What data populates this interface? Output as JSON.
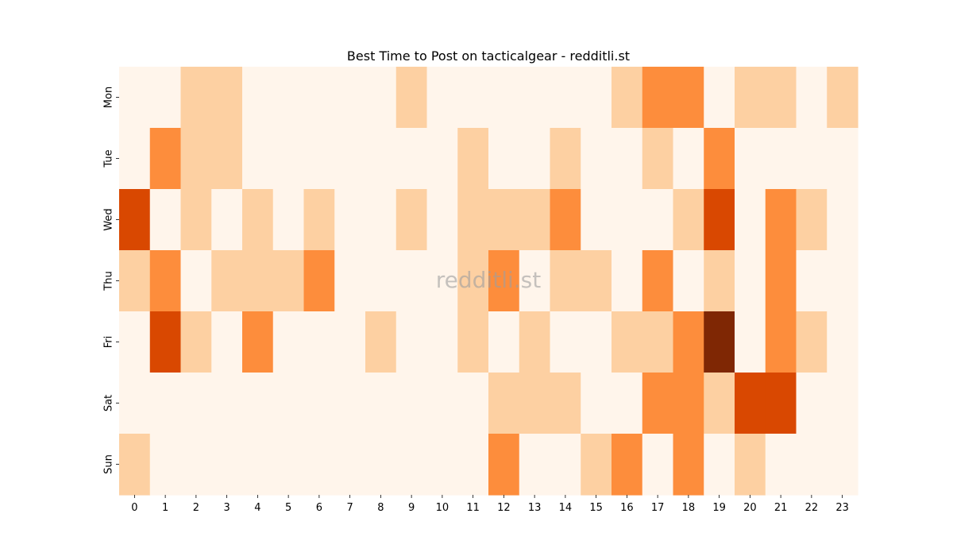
{
  "chart_data": {
    "type": "heatmap",
    "title": "Best Time to Post on tacticalgear - redditli.st",
    "xlabel": "",
    "ylabel": "",
    "x_categories": [
      "0",
      "1",
      "2",
      "3",
      "4",
      "5",
      "6",
      "7",
      "8",
      "9",
      "10",
      "11",
      "12",
      "13",
      "14",
      "15",
      "16",
      "17",
      "18",
      "19",
      "20",
      "21",
      "22",
      "23"
    ],
    "y_categories": [
      "Mon",
      "Tue",
      "Wed",
      "Thu",
      "Fri",
      "Sat",
      "Sun"
    ],
    "values": [
      [
        0,
        0,
        1,
        1,
        0,
        0,
        0,
        0,
        0,
        1,
        0,
        0,
        0,
        0,
        0,
        0,
        1,
        2,
        2,
        0,
        1,
        1,
        0,
        1
      ],
      [
        0,
        2,
        1,
        1,
        0,
        0,
        0,
        0,
        0,
        0,
        0,
        1,
        0,
        0,
        1,
        0,
        0,
        1,
        0,
        2,
        0,
        0,
        0,
        0
      ],
      [
        3,
        0,
        1,
        0,
        1,
        0,
        1,
        0,
        0,
        1,
        0,
        1,
        1,
        1,
        2,
        0,
        0,
        0,
        1,
        3,
        0,
        2,
        1,
        0
      ],
      [
        1,
        2,
        0,
        1,
        1,
        1,
        2,
        0,
        0,
        0,
        0,
        1,
        2,
        0,
        1,
        1,
        0,
        2,
        0,
        1,
        0,
        2,
        0,
        0
      ],
      [
        0,
        3,
        1,
        0,
        2,
        0,
        0,
        0,
        1,
        0,
        0,
        1,
        0,
        1,
        0,
        0,
        1,
        1,
        2,
        4,
        0,
        2,
        1,
        0
      ],
      [
        0,
        0,
        0,
        0,
        0,
        0,
        0,
        0,
        0,
        0,
        0,
        0,
        1,
        1,
        1,
        0,
        0,
        2,
        2,
        1,
        3,
        3,
        0,
        0
      ],
      [
        1,
        0,
        0,
        0,
        0,
        0,
        0,
        0,
        0,
        0,
        0,
        0,
        2,
        0,
        0,
        1,
        2,
        0,
        2,
        0,
        1,
        0,
        0,
        0
      ]
    ],
    "color_levels": [
      "#fff5eb",
      "#fdd0a2",
      "#fd8d3c",
      "#d94801",
      "#7f2704"
    ],
    "colormap": "Oranges",
    "grid": false,
    "legend": "none"
  },
  "watermark": "redditli.st"
}
